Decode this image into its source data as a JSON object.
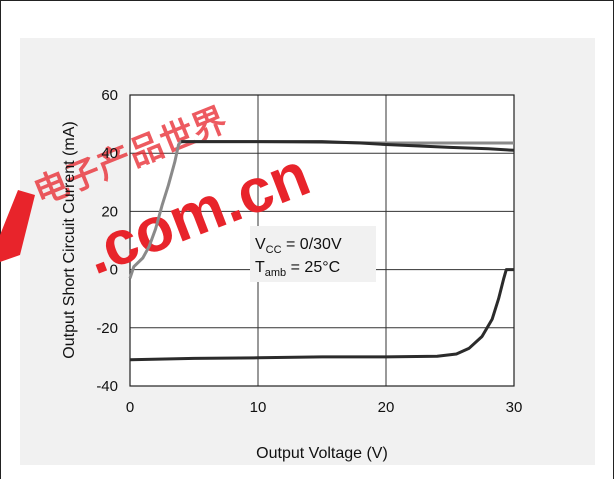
{
  "chart_data": {
    "type": "line",
    "title": "",
    "xlabel": "Output Voltage (V)",
    "ylabel": "Output Short Circuit Current (mA)",
    "xlim": [
      0,
      30
    ],
    "ylim": [
      -40,
      60
    ],
    "x_ticks": [
      0,
      10,
      20,
      30
    ],
    "y_ticks": [
      -40,
      -20,
      0,
      20,
      40,
      60
    ],
    "grid": true,
    "legend": "none",
    "annotations": [
      {
        "text": "V",
        "sub": "CC",
        "rest": " = 0/30V"
      },
      {
        "text": "T",
        "sub": "amb",
        "rest": " = 25°C"
      }
    ],
    "series": [
      {
        "color": "#8a8a8a",
        "points": [
          [
            0,
            -3
          ],
          [
            0.3,
            1
          ],
          [
            1,
            4
          ],
          [
            1.5,
            8
          ],
          [
            2,
            14
          ],
          [
            2.5,
            22
          ],
          [
            3,
            29
          ],
          [
            3.5,
            37
          ],
          [
            3.8,
            43
          ],
          [
            4,
            44
          ],
          [
            10,
            44
          ],
          [
            20,
            43.5
          ],
          [
            30,
            43.5
          ]
        ]
      },
      {
        "color": "#2b2b2b",
        "points": [
          [
            4,
            44
          ],
          [
            10,
            44
          ],
          [
            15,
            44
          ],
          [
            18,
            43.5
          ],
          [
            20,
            43
          ],
          [
            25,
            42
          ],
          [
            28,
            41.5
          ],
          [
            30,
            41
          ]
        ]
      },
      {
        "color": "#2b2b2b",
        "points": [
          [
            0,
            -31
          ],
          [
            5,
            -30.5
          ],
          [
            10,
            -30.3
          ],
          [
            15,
            -30
          ],
          [
            20,
            -30
          ],
          [
            24,
            -29.8
          ],
          [
            25.5,
            -29
          ],
          [
            26.5,
            -27
          ],
          [
            27.5,
            -23
          ],
          [
            28.3,
            -17
          ],
          [
            28.8,
            -10
          ],
          [
            29.2,
            -3
          ],
          [
            29.4,
            0
          ],
          [
            30,
            0
          ]
        ]
      }
    ]
  },
  "watermark": {
    "cjk": "电子产品世界",
    "latin": ".com.cn",
    "color": "#e8242b"
  }
}
